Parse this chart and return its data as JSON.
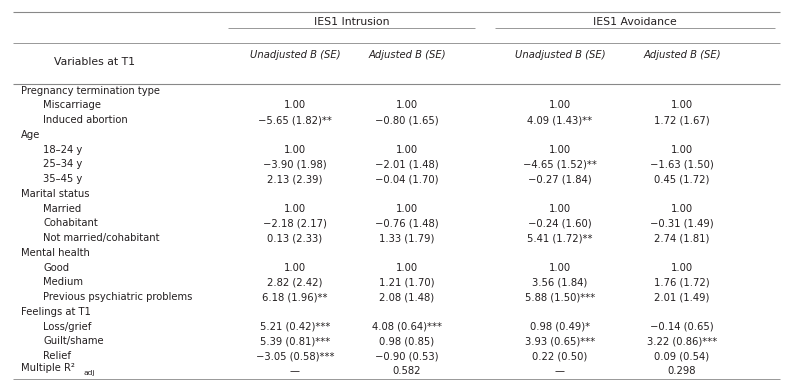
{
  "col_headers_left": "Variables at T1",
  "group_headers": [
    "IES1 Intrusion",
    "IES1 Avoidance"
  ],
  "sub_headers": [
    "Unadjusted B (SE)",
    "Adjusted B (SE)",
    "Unadjusted B (SE)",
    "Adjusted B (SE)"
  ],
  "rows": [
    {
      "label": "Pregnancy termination type",
      "indent": 0,
      "values": [
        "",
        "",
        "",
        ""
      ]
    },
    {
      "label": "Miscarriage",
      "indent": 1,
      "values": [
        "1.00",
        "1.00",
        "1.00",
        "1.00"
      ]
    },
    {
      "label": "Induced abortion",
      "indent": 1,
      "values": [
        "−5.65 (1.82)**",
        "−0.80 (1.65)",
        "4.09 (1.43)**",
        "1.72 (1.67)"
      ]
    },
    {
      "label": "Age",
      "indent": 0,
      "values": [
        "",
        "",
        "",
        ""
      ]
    },
    {
      "label": "18–24 y",
      "indent": 1,
      "values": [
        "1.00",
        "1.00",
        "1.00",
        "1.00"
      ]
    },
    {
      "label": "25–34 y",
      "indent": 1,
      "values": [
        "−3.90 (1.98)",
        "−2.01 (1.48)",
        "−4.65 (1.52)**",
        "−1.63 (1.50)"
      ]
    },
    {
      "label": "35–45 y",
      "indent": 1,
      "values": [
        "2.13 (2.39)",
        "−0.04 (1.70)",
        "−0.27 (1.84)",
        "0.45 (1.72)"
      ]
    },
    {
      "label": "Marital status",
      "indent": 0,
      "values": [
        "",
        "",
        "",
        ""
      ]
    },
    {
      "label": "Married",
      "indent": 1,
      "values": [
        "1.00",
        "1.00",
        "1.00",
        "1.00"
      ]
    },
    {
      "label": "Cohabitant",
      "indent": 1,
      "values": [
        "−2.18 (2.17)",
        "−0.76 (1.48)",
        "−0.24 (1.60)",
        "−0.31 (1.49)"
      ]
    },
    {
      "label": "Not married/cohabitant",
      "indent": 1,
      "values": [
        "0.13 (2.33)",
        "1.33 (1.79)",
        "5.41 (1.72)**",
        "2.74 (1.81)"
      ]
    },
    {
      "label": "Mental health",
      "indent": 0,
      "values": [
        "",
        "",
        "",
        ""
      ]
    },
    {
      "label": "Good",
      "indent": 1,
      "values": [
        "1.00",
        "1.00",
        "1.00",
        "1.00"
      ]
    },
    {
      "label": "Medium",
      "indent": 1,
      "values": [
        "2.82 (2.42)",
        "1.21 (1.70)",
        "3.56 (1.84)",
        "1.76 (1.72)"
      ]
    },
    {
      "label": "Previous psychiatric problems",
      "indent": 1,
      "values": [
        "6.18 (1.96)**",
        "2.08 (1.48)",
        "5.88 (1.50)***",
        "2.01 (1.49)"
      ]
    },
    {
      "label": "Feelings at T1",
      "indent": 0,
      "values": [
        "",
        "",
        "",
        ""
      ]
    },
    {
      "label": "Loss/grief",
      "indent": 1,
      "values": [
        "5.21 (0.42)***",
        "4.08 (0.64)***",
        "0.98 (0.49)*",
        "−0.14 (0.65)"
      ]
    },
    {
      "label": "Guilt/shame",
      "indent": 1,
      "values": [
        "5.39 (0.81)***",
        "0.98 (0.85)",
        "3.93 (0.65)***",
        "3.22 (0.86)***"
      ]
    },
    {
      "label": "Relief",
      "indent": 1,
      "values": [
        "−3.05 (0.58)***",
        "−0.90 (0.53)",
        "0.22 (0.50)",
        "0.09 (0.54)"
      ]
    },
    {
      "label": "Multiple R²",
      "indent": 0,
      "label_suffix": "adj",
      "values": [
        "—",
        "0.582",
        "—",
        "0.298"
      ]
    }
  ],
  "bg_color": "#ffffff",
  "text_color": "#231f20",
  "line_color": "#888888",
  "font_size": 7.2,
  "header_font_size": 7.8
}
